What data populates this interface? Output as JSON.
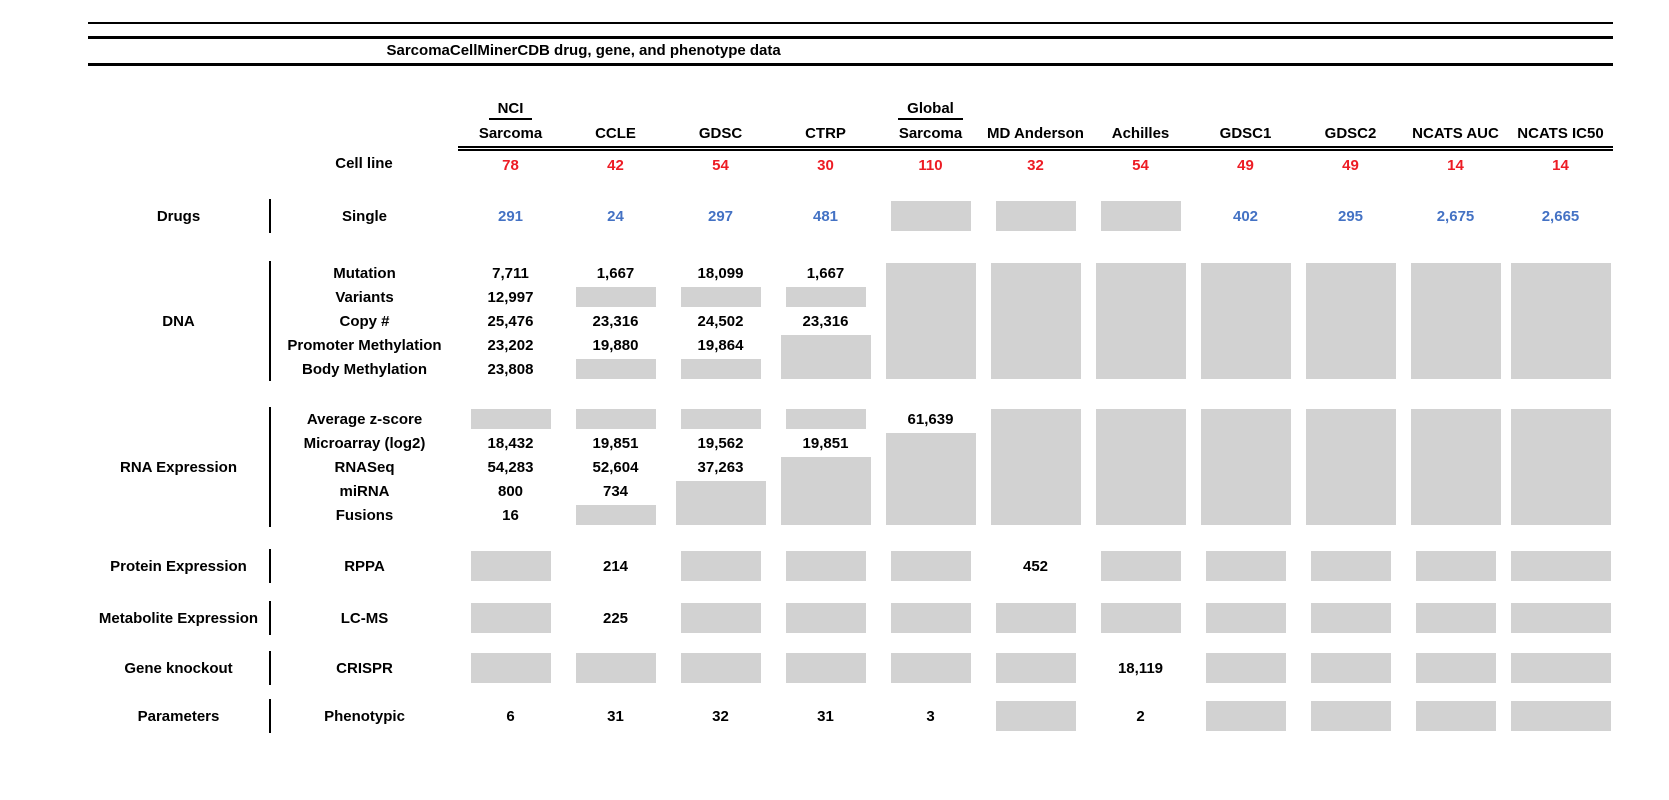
{
  "title": "SarcomaCellMinerCDB drug, gene, and phenotype data",
  "colors": {
    "red": "#ED1C24",
    "blue": "#4472C4",
    "no_data_gray": "#D2D2D2"
  },
  "header": {
    "cell_line_label": "Cell line",
    "columns": [
      {
        "top": "NCI",
        "name": "Sarcoma",
        "cell_lines": "78"
      },
      {
        "top": "",
        "name": "CCLE",
        "cell_lines": "42"
      },
      {
        "top": "",
        "name": "GDSC",
        "cell_lines": "54"
      },
      {
        "top": "",
        "name": "CTRP",
        "cell_lines": "30"
      },
      {
        "top": "Global",
        "name": "Sarcoma",
        "cell_lines": "110"
      },
      {
        "top": "",
        "name": "MD Anderson",
        "cell_lines": "32"
      },
      {
        "top": "",
        "name": "Achilles",
        "cell_lines": "54"
      },
      {
        "top": "",
        "name": "GDSC1",
        "cell_lines": "49"
      },
      {
        "top": "",
        "name": "GDSC2",
        "cell_lines": "49"
      },
      {
        "top": "",
        "name": "NCATS AUC",
        "cell_lines": "14"
      },
      {
        "top": "",
        "name": "NCATS IC50",
        "cell_lines": "14"
      }
    ]
  },
  "sections": [
    {
      "category": "Drugs",
      "rows": [
        {
          "label": "Single",
          "color": "blue",
          "cells": [
            {
              "v": "291"
            },
            {
              "v": "24"
            },
            {
              "v": "297"
            },
            {
              "v": "481"
            },
            {
              "box": 1
            },
            {
              "box": 1
            },
            {
              "box": 1
            },
            {
              "v": "402"
            },
            {
              "v": "295"
            },
            {
              "v": "2,675"
            },
            {
              "v": "2,665"
            }
          ]
        }
      ]
    },
    {
      "category": "DNA",
      "rows": [
        {
          "label": "Mutation",
          "cells": [
            {
              "v": "7,711"
            },
            {
              "v": "1,667"
            },
            {
              "v": "18,099"
            },
            {
              "v": "1,667"
            },
            {
              "box": 5
            },
            {
              "box": 5
            },
            {
              "box": 5
            },
            {
              "box": 5
            },
            {
              "box": 5
            },
            {
              "box": 5
            },
            {
              "box": 5
            }
          ]
        },
        {
          "label": "Variants",
          "cells": [
            {
              "v": "12,997"
            },
            {
              "box": 1
            },
            {
              "box": 1
            },
            {
              "box": 1
            },
            null,
            null,
            null,
            null,
            null,
            null,
            null
          ]
        },
        {
          "label": "Copy #",
          "cells": [
            {
              "v": "25,476"
            },
            {
              "v": "23,316"
            },
            {
              "v": "24,502"
            },
            {
              "v": "23,316"
            },
            null,
            null,
            null,
            null,
            null,
            null,
            null
          ]
        },
        {
          "label": "Promoter Methylation",
          "cells": [
            {
              "v": "23,202"
            },
            {
              "v": "19,880"
            },
            {
              "v": "19,864"
            },
            {
              "box": 2
            },
            null,
            null,
            null,
            null,
            null,
            null,
            null
          ]
        },
        {
          "label": "Body Methylation",
          "cells": [
            {
              "v": "23,808"
            },
            {
              "box": 1
            },
            {
              "box": 1
            },
            null,
            null,
            null,
            null,
            null,
            null,
            null,
            null
          ]
        }
      ]
    },
    {
      "category": "RNA Expression",
      "rows": [
        {
          "label": "Average z-score",
          "cells": [
            {
              "box": 1
            },
            {
              "box": 1
            },
            {
              "box": 1
            },
            {
              "box": 1
            },
            {
              "v": "61,639"
            },
            {
              "box": 5
            },
            {
              "box": 5
            },
            {
              "box": 5
            },
            {
              "box": 5
            },
            {
              "box": 5
            },
            {
              "box": 5
            }
          ]
        },
        {
          "label": "Microarray (log2)",
          "cells": [
            {
              "v": "18,432"
            },
            {
              "v": "19,851"
            },
            {
              "v": "19,562"
            },
            {
              "v": "19,851"
            },
            {
              "box": 4
            },
            null,
            null,
            null,
            null,
            null,
            null
          ]
        },
        {
          "label": "RNASeq",
          "cells": [
            {
              "v": "54,283"
            },
            {
              "v": "52,604"
            },
            {
              "v": "37,263"
            },
            {
              "box": 3
            },
            null,
            null,
            null,
            null,
            null,
            null,
            null
          ]
        },
        {
          "label": "miRNA",
          "cells": [
            {
              "v": "800"
            },
            {
              "v": "734"
            },
            {
              "box": 2
            },
            null,
            null,
            null,
            null,
            null,
            null,
            null,
            null
          ]
        },
        {
          "label": "Fusions",
          "cells": [
            {
              "v": "16"
            },
            {
              "box": 1
            },
            null,
            null,
            null,
            null,
            null,
            null,
            null,
            null,
            null
          ]
        }
      ]
    },
    {
      "category": "Protein Expression",
      "rows": [
        {
          "label": "RPPA",
          "cells": [
            {
              "box": 1
            },
            {
              "v": "214"
            },
            {
              "box": 1
            },
            {
              "box": 1
            },
            {
              "box": 1
            },
            {
              "v": "452"
            },
            {
              "box": 1
            },
            {
              "box": 1
            },
            {
              "box": 1
            },
            {
              "box": 1
            },
            {
              "box": 1
            }
          ]
        }
      ]
    },
    {
      "category": "Metabolite Expression",
      "rows": [
        {
          "label": "LC-MS",
          "cells": [
            {
              "box": 1
            },
            {
              "v": "225"
            },
            {
              "box": 1
            },
            {
              "box": 1
            },
            {
              "box": 1
            },
            {
              "box": 1
            },
            {
              "box": 1
            },
            {
              "box": 1
            },
            {
              "box": 1
            },
            {
              "box": 1
            },
            {
              "box": 1
            }
          ]
        }
      ]
    },
    {
      "category": "Gene knockout",
      "rows": [
        {
          "label": "CRISPR",
          "cells": [
            {
              "box": 1
            },
            {
              "box": 1
            },
            {
              "box": 1
            },
            {
              "box": 1
            },
            {
              "box": 1
            },
            {
              "box": 1
            },
            {
              "v": "18,119"
            },
            {
              "box": 1
            },
            {
              "box": 1
            },
            {
              "box": 1
            },
            {
              "box": 1
            }
          ]
        }
      ]
    },
    {
      "category": "Parameters",
      "rows": [
        {
          "label": "Phenotypic",
          "cells": [
            {
              "v": "6"
            },
            {
              "v": "31"
            },
            {
              "v": "32"
            },
            {
              "v": "31"
            },
            {
              "v": "3"
            },
            {
              "box": 1
            },
            {
              "v": "2"
            },
            {
              "box": 1
            },
            {
              "box": 1
            },
            {
              "box": 1
            },
            {
              "box": 1
            }
          ]
        }
      ]
    }
  ]
}
